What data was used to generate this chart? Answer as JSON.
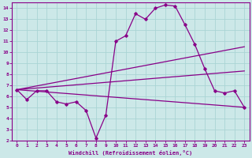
{
  "xlabel": "Windchill (Refroidissement éolien,°C)",
  "xlim": [
    -0.5,
    23.5
  ],
  "ylim": [
    2,
    14.5
  ],
  "xticks": [
    0,
    1,
    2,
    3,
    4,
    5,
    6,
    7,
    8,
    9,
    10,
    11,
    12,
    13,
    14,
    15,
    16,
    17,
    18,
    19,
    20,
    21,
    22,
    23
  ],
  "yticks": [
    2,
    3,
    4,
    5,
    6,
    7,
    8,
    9,
    10,
    11,
    12,
    13,
    14
  ],
  "bg_color": "#cce8e8",
  "line_color": "#880088",
  "grid_color": "#aad4d4",
  "main_line": {
    "x": [
      0,
      1,
      2,
      3,
      4,
      5,
      6,
      7,
      8,
      9,
      10,
      11,
      12,
      13,
      14,
      15,
      16,
      17,
      18,
      19,
      20,
      21,
      22,
      23
    ],
    "y": [
      6.6,
      5.7,
      6.5,
      6.5,
      5.5,
      5.3,
      5.5,
      4.7,
      2.2,
      4.3,
      11.0,
      11.5,
      13.5,
      13.0,
      14.0,
      14.3,
      14.2,
      12.5,
      10.7,
      8.5,
      6.5,
      6.3,
      6.5,
      5.0
    ]
  },
  "straight_lines": [
    {
      "x": [
        0,
        23
      ],
      "y": [
        6.6,
        10.5
      ]
    },
    {
      "x": [
        0,
        23
      ],
      "y": [
        6.6,
        8.3
      ]
    },
    {
      "x": [
        0,
        23
      ],
      "y": [
        6.6,
        5.0
      ]
    }
  ]
}
